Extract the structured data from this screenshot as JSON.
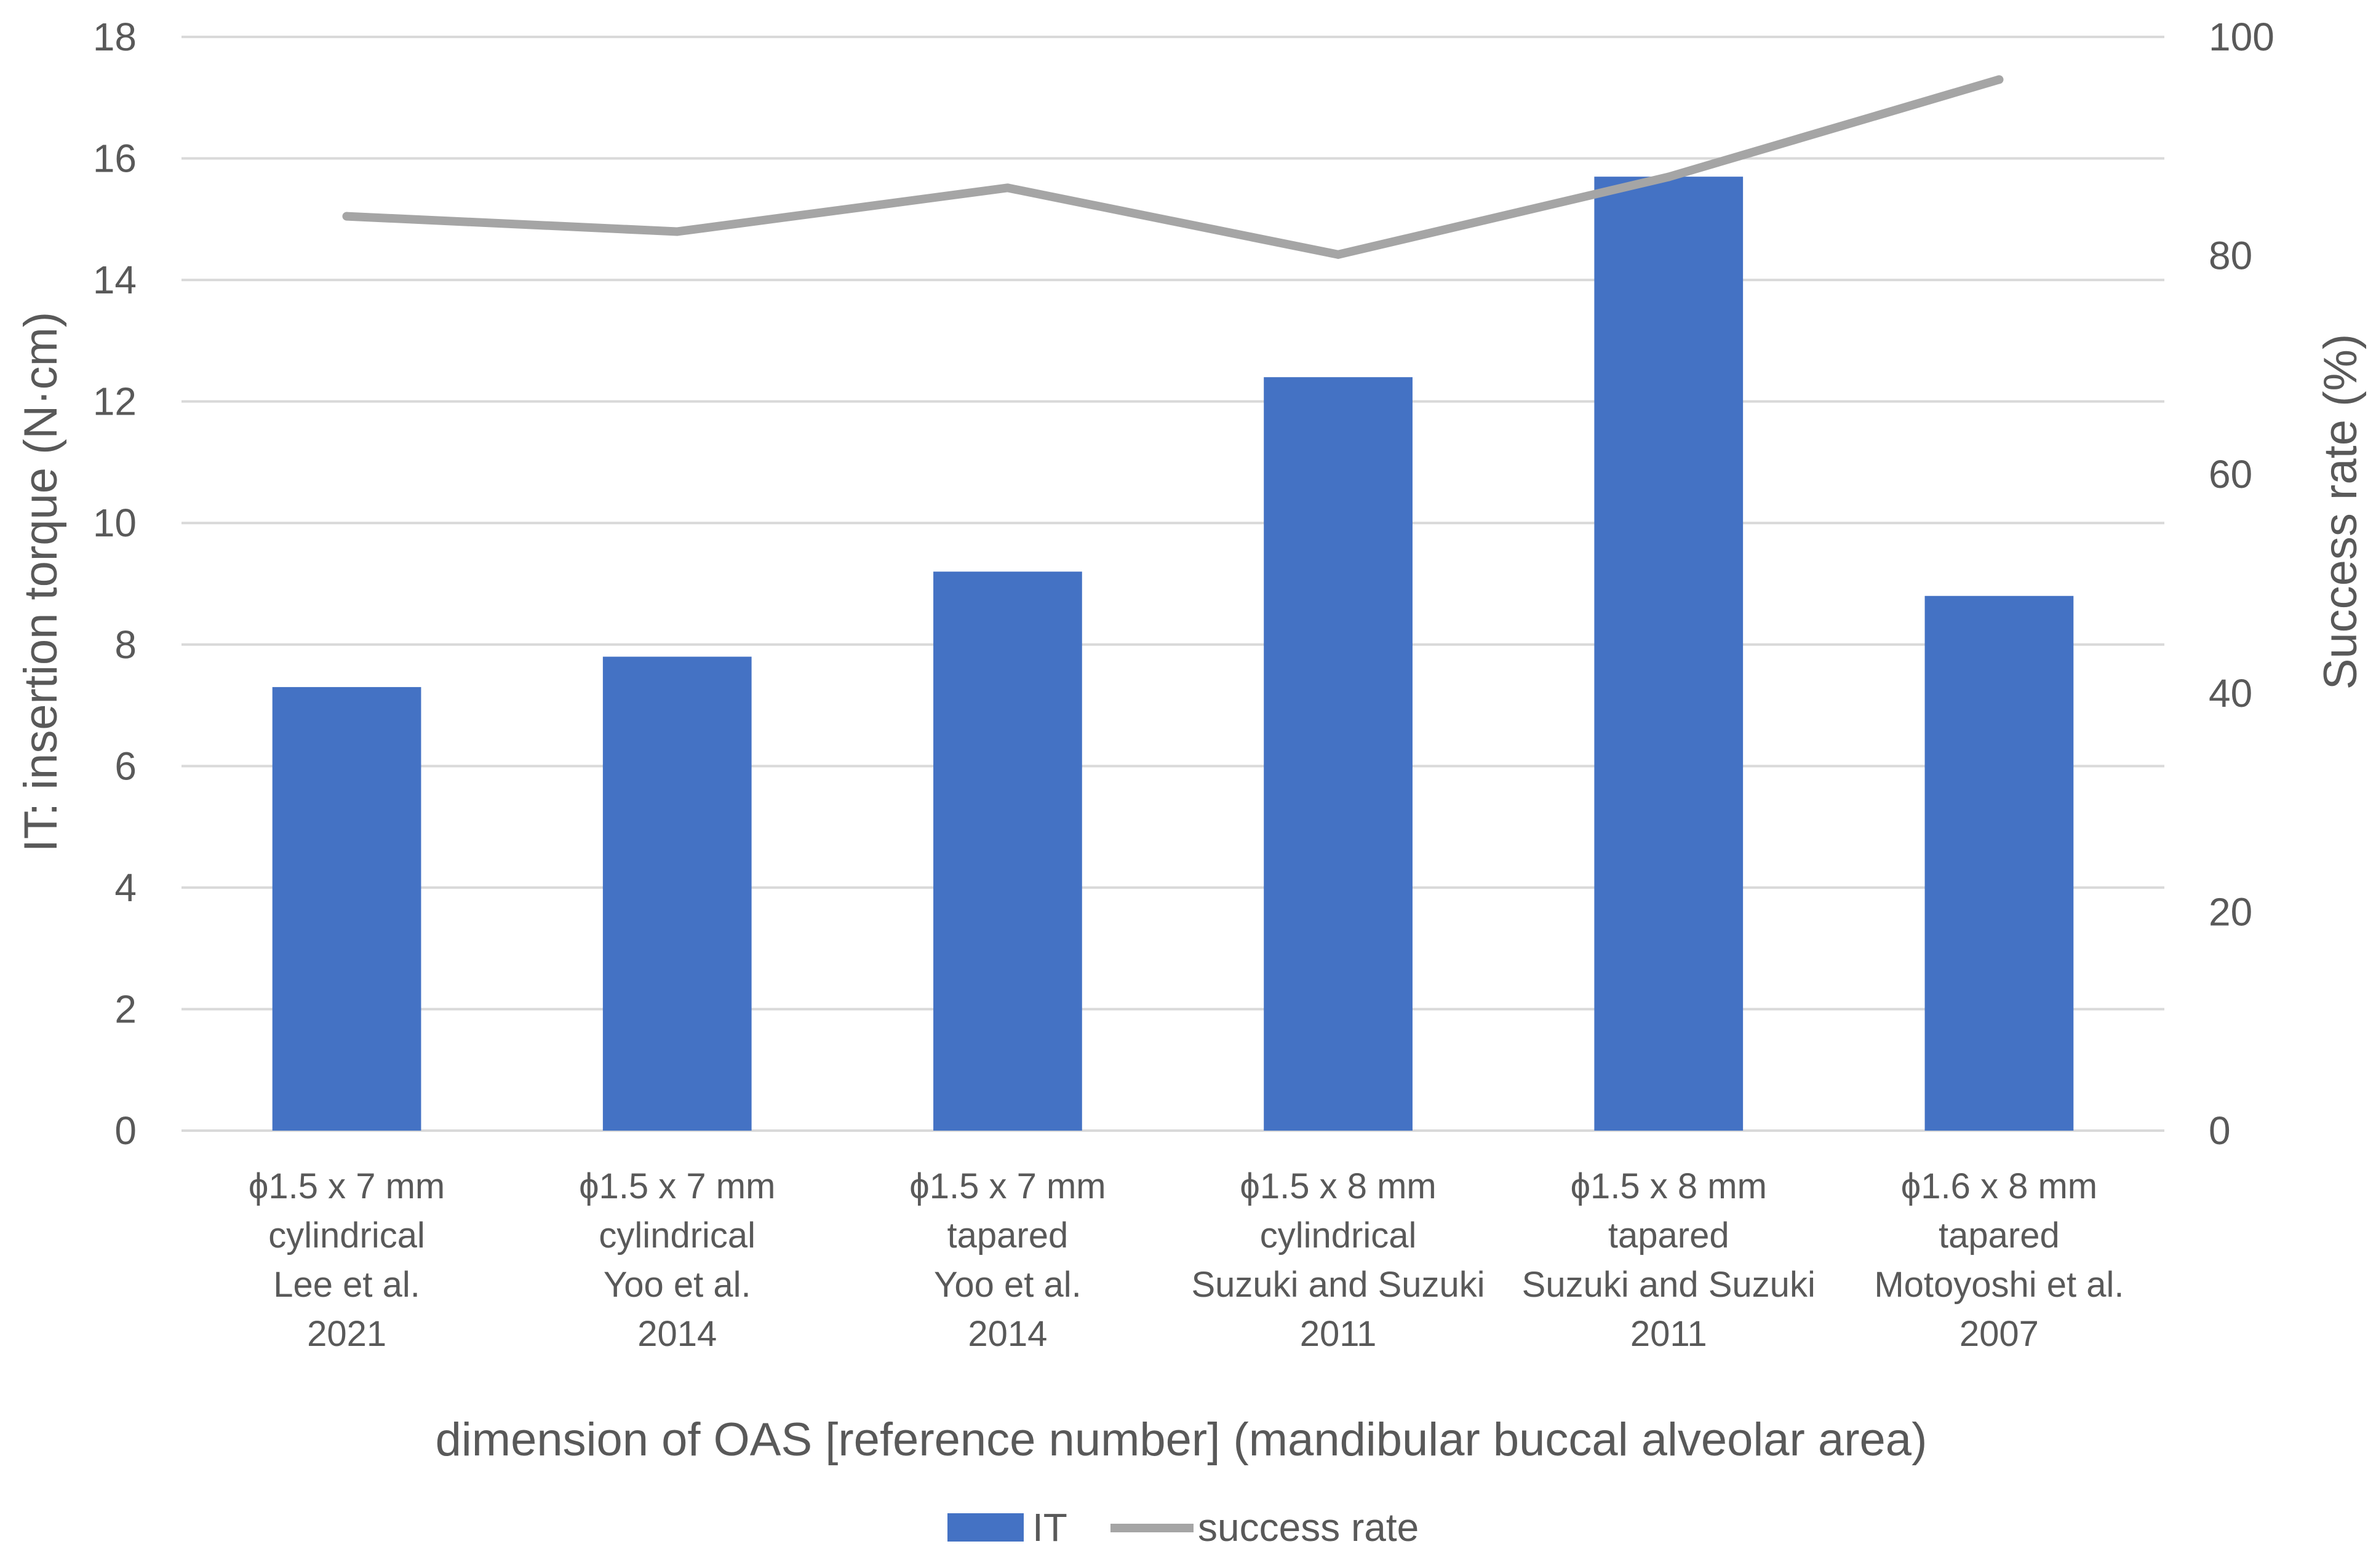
{
  "chart_data": {
    "type": "bar",
    "title": "",
    "xlabel": "dimension of OAS [reference number] (mandibular buccal alveolar area)",
    "ylabel": "IT: insertion torque (N·cm)",
    "y2label": "Success rate (%)",
    "ylim": [
      0,
      18
    ],
    "y2lim": [
      0,
      100
    ],
    "yticks": [
      "0",
      "2",
      "4",
      "6",
      "8",
      "10",
      "12",
      "14",
      "16",
      "18"
    ],
    "y2ticks": [
      "0",
      "20",
      "40",
      "60",
      "80",
      "100"
    ],
    "grid": true,
    "legend_position": "bottom-center",
    "categories": [
      [
        "ϕ1.5 x 7 mm",
        "cylindrical",
        "Lee et al.",
        "2021"
      ],
      [
        "ϕ1.5 x 7 mm",
        "cylindrical",
        "Yoo et al.",
        "2014"
      ],
      [
        "ϕ1.5 x 7 mm",
        "tapared",
        "Yoo et al.",
        "2014"
      ],
      [
        "ϕ1.5 x 8 mm",
        "cylindrical",
        "Suzuki and Suzuki",
        "2011"
      ],
      [
        "ϕ1.5 x 8 mm",
        "tapared",
        "Suzuki and Suzuki",
        "2011"
      ],
      [
        "ϕ1.6 x 8 mm",
        "tapared",
        "Motoyoshi et al.",
        "2007"
      ]
    ],
    "series": [
      {
        "name": "IT",
        "type": "bar",
        "axis": "left",
        "color": "#4472C4",
        "values": [
          7.3,
          7.8,
          9.2,
          12.4,
          15.7,
          8.8
        ]
      },
      {
        "name": "success rate",
        "type": "line",
        "axis": "right",
        "color": "#A5A5A5",
        "values": [
          83.6,
          82.2,
          86.2,
          80.1,
          87.2,
          96.1
        ]
      }
    ]
  }
}
